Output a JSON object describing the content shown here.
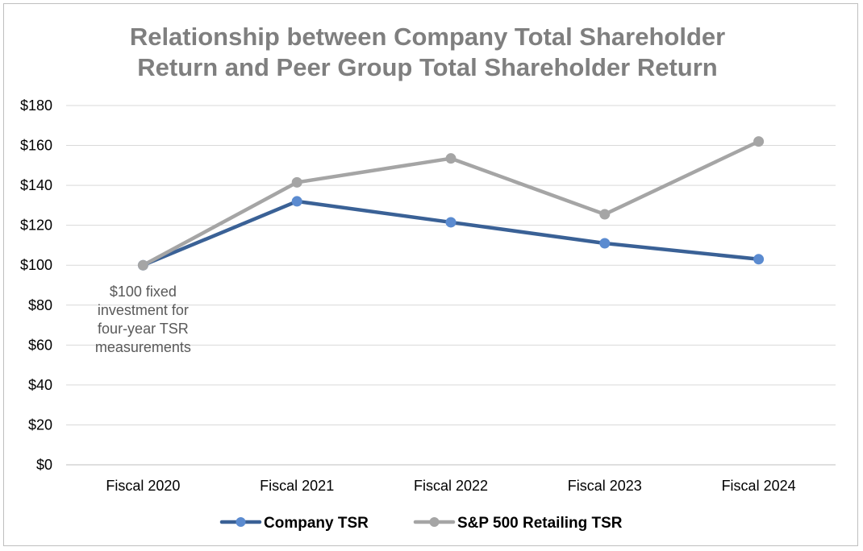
{
  "chart_data": {
    "type": "line",
    "title_lines": [
      "Relationship between Company Total Shareholder",
      "Return and Peer Group Total Shareholder Return"
    ],
    "categories": [
      "Fiscal 2020",
      "Fiscal 2021",
      "Fiscal 2022",
      "Fiscal 2023",
      "Fiscal 2024"
    ],
    "series": [
      {
        "name": "Company TSR",
        "values": [
          100,
          132,
          121.5,
          111,
          103
        ],
        "color": "#3a6196",
        "marker_color": "#5b8bd0"
      },
      {
        "name": "S&P 500 Retailing TSR",
        "values": [
          100,
          141.5,
          153.5,
          125.5,
          162
        ],
        "color": "#a5a5a5",
        "marker_color": "#a5a5a5"
      }
    ],
    "ylim": [
      0,
      180
    ],
    "y_ticks": [
      0,
      20,
      40,
      60,
      80,
      100,
      120,
      140,
      160,
      180
    ],
    "y_tick_labels": [
      "$0",
      "$20",
      "$40",
      "$60",
      "$80",
      "$100",
      "$120",
      "$140",
      "$160",
      "$180"
    ],
    "grid": true,
    "legend_position": "bottom",
    "annotation": {
      "category": "Fiscal 2020",
      "lines": [
        "$100 fixed",
        "investment for",
        "four-year TSR",
        "measurements"
      ]
    }
  }
}
